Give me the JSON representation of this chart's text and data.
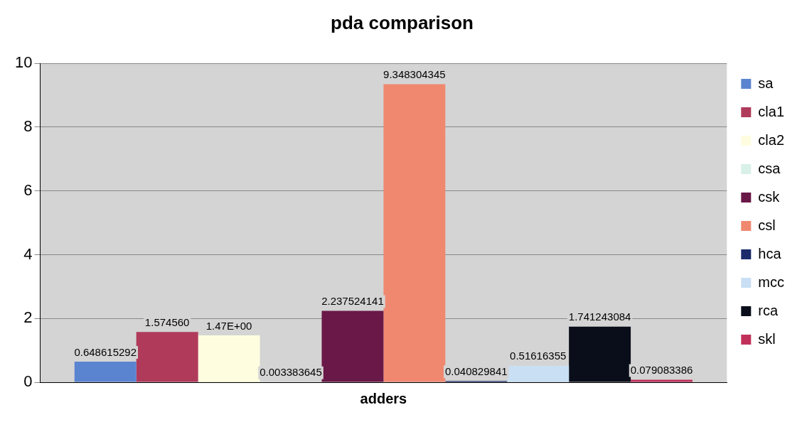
{
  "chart_data": {
    "type": "bar",
    "title": "pda comparison",
    "xlabel": "adders",
    "categories": [
      null
    ],
    "series": [
      {
        "name": "sa",
        "color": "#5b84d0",
        "values": [
          0.648615292
        ],
        "value_labels": [
          "0.648615292"
        ]
      },
      {
        "name": "cla1",
        "color": "#b03a5a",
        "values": [
          1.57456
        ],
        "value_labels": [
          "1.574560"
        ]
      },
      {
        "name": "cla2",
        "color": "#fffde0",
        "values": [
          1.47
        ],
        "value_labels": [
          "1.47E+00"
        ]
      },
      {
        "name": "csa",
        "color": "#d8f0e8",
        "values": [
          0.003383645
        ],
        "value_labels": [
          "0.003383645"
        ]
      },
      {
        "name": "csk",
        "color": "#6a1848",
        "values": [
          2.237524141
        ],
        "value_labels": [
          "2.237524141"
        ]
      },
      {
        "name": "csl",
        "color": "#f08870",
        "values": [
          9.348304345
        ],
        "value_labels": [
          "9.348304345"
        ]
      },
      {
        "name": "hca",
        "color": "#1a2a6a",
        "values": [
          0.040829841
        ],
        "value_labels": [
          "0.040829841"
        ]
      },
      {
        "name": "mcc",
        "color": "#c8dff4",
        "values": [
          0.51616355
        ],
        "value_labels": [
          "0.51616355"
        ]
      },
      {
        "name": "rca",
        "color": "#0a0e1a",
        "values": [
          1.741243084
        ],
        "value_labels": [
          "1.741243084"
        ]
      },
      {
        "name": "skl",
        "color": "#c0305a",
        "values": [
          0.079083386
        ],
        "value_labels": [
          "0.079083386"
        ]
      }
    ],
    "ylim": [
      0,
      10
    ],
    "yticks": [
      0,
      2,
      4,
      6,
      8,
      10
    ],
    "grid": "y",
    "legend": "right"
  }
}
